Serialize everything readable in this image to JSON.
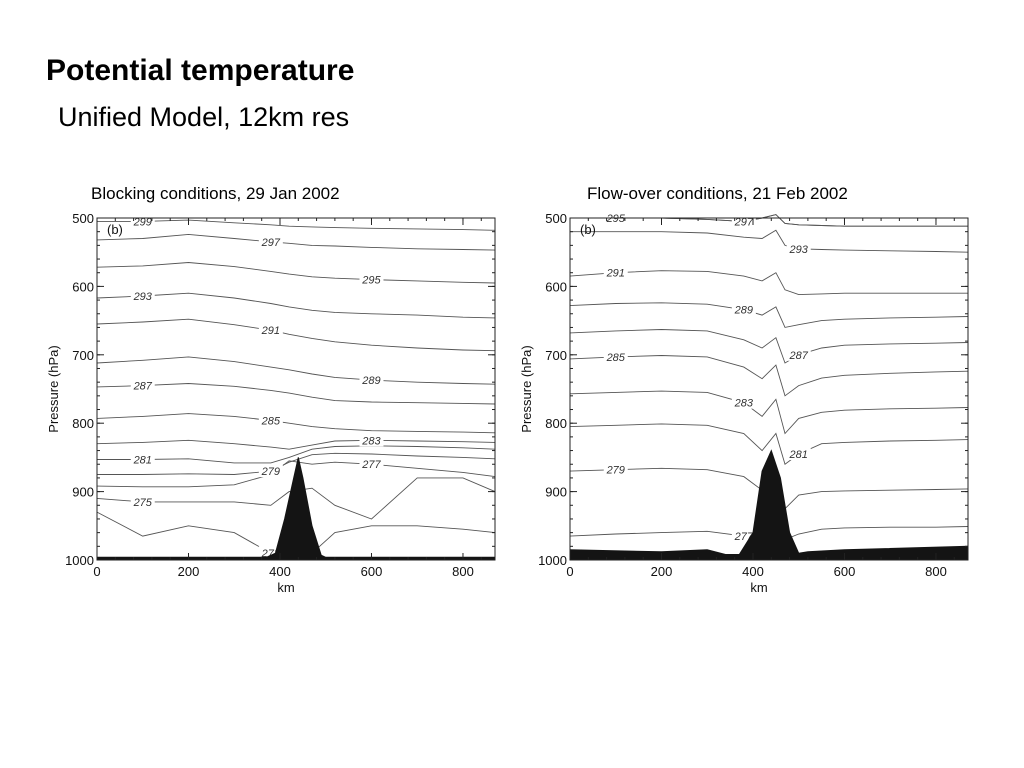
{
  "slide": {
    "title": "Potential temperature",
    "subtitle": "Unified Model, 12km res"
  },
  "chart_data": [
    {
      "type": "line",
      "caption": "Blocking conditions, 29 Jan 2002",
      "panel_label": "(b)",
      "xlabel": "km",
      "ylabel": "Pressure (hPa)",
      "xlim": [
        0,
        870
      ],
      "ylim": [
        1000,
        500
      ],
      "y_axis_inverted": true,
      "xticks": [
        0,
        200,
        400,
        600,
        800
      ],
      "yticks": [
        500,
        600,
        700,
        800,
        900,
        1000
      ],
      "x": [
        0,
        100,
        200,
        300,
        380,
        420,
        470,
        520,
        600,
        700,
        800,
        870
      ],
      "terrain": {
        "name": "orography",
        "x": [
          0,
          370,
          390,
          410,
          430,
          440,
          450,
          470,
          490,
          500,
          870
        ],
        "p": [
          996,
          996,
          990,
          940,
          880,
          850,
          880,
          950,
          993,
          996,
          996
        ]
      },
      "series": [
        {
          "name": "299",
          "p": [
            505,
            505,
            503,
            507,
            510,
            512,
            513,
            514,
            515,
            516,
            517,
            518
          ]
        },
        {
          "name": "297",
          "p": [
            532,
            530,
            524,
            530,
            535,
            537,
            540,
            541,
            543,
            545,
            546,
            547
          ]
        },
        {
          "name": "295",
          "p": [
            572,
            570,
            565,
            571,
            578,
            582,
            586,
            588,
            590,
            592,
            594,
            595
          ]
        },
        {
          "name": "293",
          "p": [
            617,
            614,
            610,
            617,
            625,
            630,
            635,
            638,
            640,
            642,
            645,
            646
          ]
        },
        {
          "name": "291",
          "p": [
            655,
            652,
            648,
            656,
            664,
            670,
            676,
            681,
            686,
            690,
            693,
            694
          ]
        },
        {
          "name": "289",
          "p": [
            712,
            708,
            703,
            710,
            718,
            722,
            728,
            733,
            737,
            740,
            742,
            743
          ]
        },
        {
          "name": "287",
          "p": [
            747,
            745,
            742,
            746,
            752,
            756,
            762,
            767,
            769,
            770,
            771,
            772
          ]
        },
        {
          "name": "285",
          "p": [
            793,
            790,
            786,
            790,
            796,
            800,
            805,
            808,
            811,
            812,
            813,
            814
          ]
        },
        {
          "name": "283",
          "p": [
            830,
            828,
            825,
            830,
            835,
            838,
            832,
            826,
            825,
            826,
            827,
            828
          ]
        },
        {
          "name": "281",
          "p": [
            853,
            853,
            852,
            858,
            858,
            850,
            838,
            834,
            833,
            834,
            836,
            838
          ]
        },
        {
          "name": "279",
          "p": [
            875,
            875,
            874,
            875,
            870,
            857,
            846,
            844,
            845,
            848,
            850,
            852
          ]
        },
        {
          "name": "277",
          "p": [
            892,
            893,
            893,
            890,
            875,
            855,
            860,
            857,
            860,
            866,
            872,
            878
          ]
        },
        {
          "name": "275",
          "p": [
            910,
            915,
            915,
            915,
            920,
            900,
            895,
            920,
            940,
            880,
            880,
            900
          ]
        },
        {
          "name": "273",
          "p": [
            930,
            965,
            950,
            960,
            990,
            990,
            990,
            960,
            950,
            950,
            955,
            960
          ]
        }
      ]
    },
    {
      "type": "line",
      "caption": "Flow-over conditions, 21 Feb 2002",
      "panel_label": "(b)",
      "xlabel": "km",
      "ylabel": "Pressure (hPa)",
      "xlim": [
        0,
        870
      ],
      "ylim": [
        1000,
        500
      ],
      "y_axis_inverted": true,
      "xticks": [
        0,
        200,
        400,
        600,
        800
      ],
      "yticks": [
        500,
        600,
        700,
        800,
        900,
        1000
      ],
      "x": [
        0,
        100,
        200,
        300,
        380,
        420,
        450,
        470,
        500,
        550,
        600,
        700,
        800,
        870
      ],
      "terrain": {
        "name": "orography",
        "x": [
          0,
          200,
          300,
          340,
          370,
          400,
          420,
          440,
          460,
          480,
          500,
          520,
          600,
          870
        ],
        "p": [
          985,
          988,
          985,
          992,
          992,
          960,
          870,
          840,
          880,
          960,
          990,
          988,
          985,
          980
        ]
      },
      "series": [
        {
          "name": "295",
          "p": [
            500,
            500,
            500,
            502,
            505,
            500,
            495,
            508,
            510,
            511,
            512,
            512,
            512,
            512
          ]
        },
        {
          "name": "297",
          "p": [
            500,
            500,
            500,
            502,
            505,
            500,
            495,
            508,
            510,
            511,
            512,
            512,
            512,
            512
          ]
        },
        {
          "name": "293",
          "p": [
            520,
            520,
            520,
            522,
            528,
            530,
            518,
            540,
            545,
            546,
            547,
            548,
            549,
            550
          ]
        },
        {
          "name": "291",
          "p": [
            585,
            580,
            577,
            578,
            585,
            592,
            580,
            605,
            612,
            611,
            610,
            610,
            610,
            610
          ]
        },
        {
          "name": "289",
          "p": [
            628,
            625,
            624,
            626,
            634,
            642,
            630,
            660,
            656,
            650,
            648,
            646,
            645,
            644
          ]
        },
        {
          "name": "287",
          "p": [
            668,
            665,
            663,
            665,
            678,
            690,
            675,
            712,
            700,
            690,
            686,
            684,
            683,
            682
          ]
        },
        {
          "name": "285",
          "p": [
            706,
            703,
            701,
            703,
            718,
            735,
            715,
            760,
            745,
            734,
            730,
            727,
            725,
            724
          ]
        },
        {
          "name": "283",
          "p": [
            757,
            755,
            753,
            755,
            770,
            790,
            765,
            815,
            793,
            784,
            781,
            779,
            778,
            777
          ]
        },
        {
          "name": "281",
          "p": [
            805,
            803,
            801,
            803,
            815,
            840,
            815,
            860,
            845,
            830,
            828,
            826,
            825,
            824
          ]
        },
        {
          "name": "279",
          "p": [
            870,
            868,
            866,
            868,
            878,
            898,
            880,
            925,
            905,
            900,
            899,
            898,
            897,
            896
          ]
        },
        {
          "name": "277",
          "p": [
            965,
            962,
            960,
            958,
            965,
            980,
            970,
            970,
            962,
            955,
            953,
            952,
            952,
            951
          ]
        }
      ]
    }
  ]
}
